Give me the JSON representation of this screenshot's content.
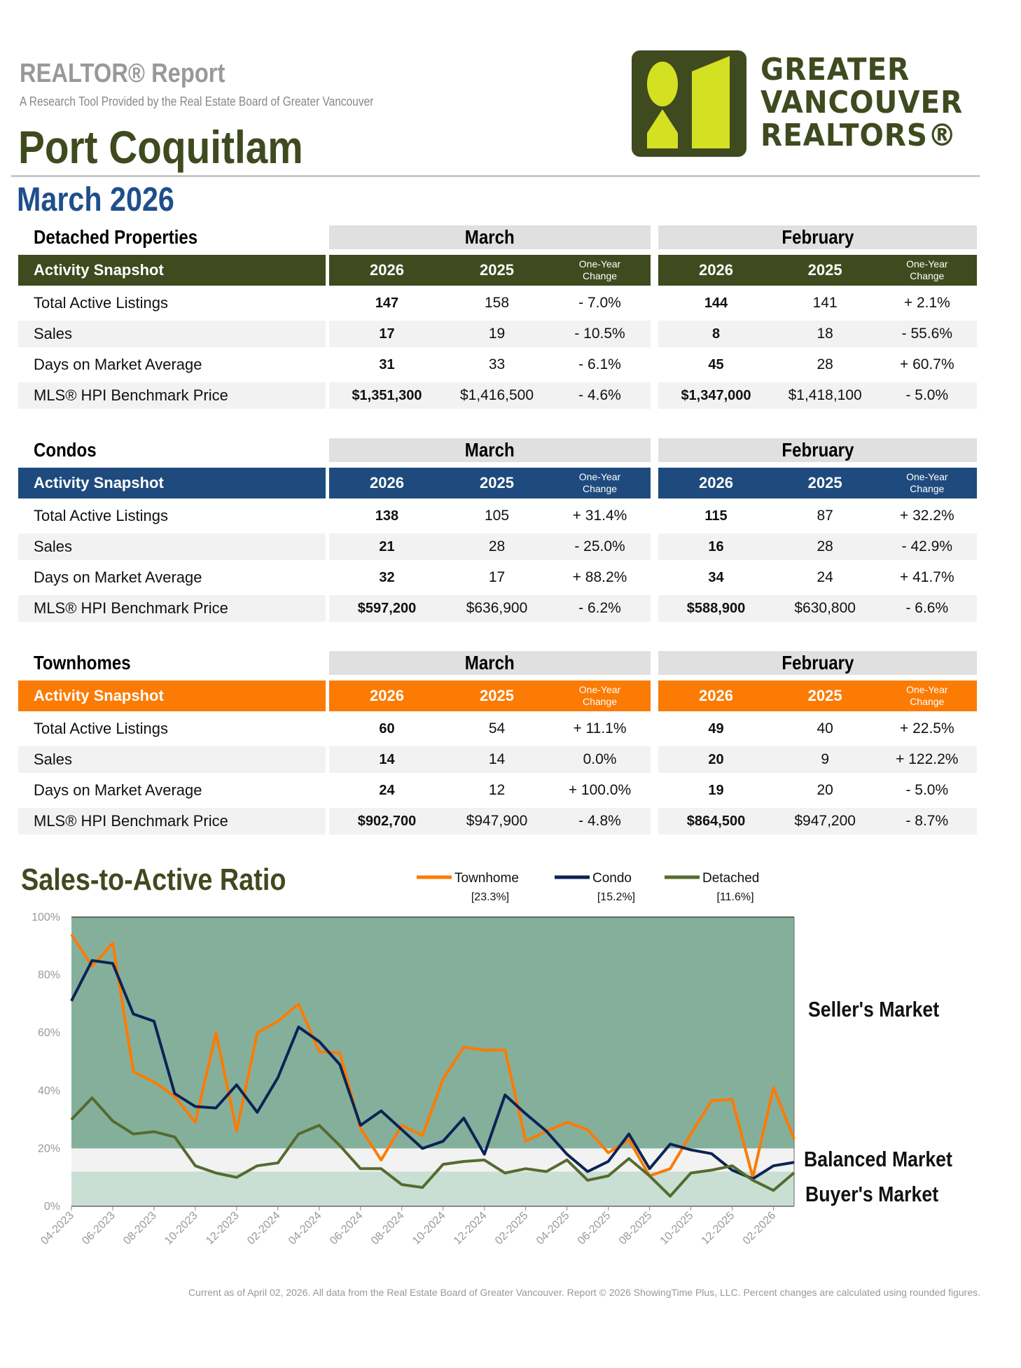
{
  "header": {
    "report_title": "REALTOR® Report",
    "subtitle": "A Research Tool Provided by the Real Estate Board of Greater Vancouver",
    "area": "Port Coquitlam",
    "period": "March 2026",
    "logo_text": [
      "GREATER",
      "VANCOUVER",
      "REALTORS®"
    ]
  },
  "colors": {
    "detached": "#3f4a1f",
    "condo": "#1f4a7d",
    "townhome": "#fb7b05",
    "logo_lime": "#d4e022"
  },
  "columns": {
    "month1": "March",
    "month2": "February",
    "y1": "2026",
    "y2": "2025",
    "change": [
      "One-Year",
      "Change"
    ],
    "snapshot": "Activity Snapshot"
  },
  "sections": [
    {
      "title": "Detached Properties",
      "rows": [
        {
          "label": "Total Active Listings",
          "m1_2026": "147",
          "m1_2025": "158",
          "m1_chg": "- 7.0%",
          "m2_2026": "144",
          "m2_2025": "141",
          "m2_chg": "+ 2.1%"
        },
        {
          "label": "Sales",
          "m1_2026": "17",
          "m1_2025": "19",
          "m1_chg": "- 10.5%",
          "m2_2026": "8",
          "m2_2025": "18",
          "m2_chg": "- 55.6%"
        },
        {
          "label": "Days on Market Average",
          "m1_2026": "31",
          "m1_2025": "33",
          "m1_chg": "- 6.1%",
          "m2_2026": "45",
          "m2_2025": "28",
          "m2_chg": "+ 60.7%"
        },
        {
          "label": "MLS® HPI Benchmark Price",
          "m1_2026": "$1,351,300",
          "m1_2025": "$1,416,500",
          "m1_chg": "- 4.6%",
          "m2_2026": "$1,347,000",
          "m2_2025": "$1,418,100",
          "m2_chg": "- 5.0%"
        }
      ]
    },
    {
      "title": "Condos",
      "rows": [
        {
          "label": "Total Active Listings",
          "m1_2026": "138",
          "m1_2025": "105",
          "m1_chg": "+ 31.4%",
          "m2_2026": "115",
          "m2_2025": "87",
          "m2_chg": "+ 32.2%"
        },
        {
          "label": "Sales",
          "m1_2026": "21",
          "m1_2025": "28",
          "m1_chg": "- 25.0%",
          "m2_2026": "16",
          "m2_2025": "28",
          "m2_chg": "- 42.9%"
        },
        {
          "label": "Days on Market Average",
          "m1_2026": "32",
          "m1_2025": "17",
          "m1_chg": "+ 88.2%",
          "m2_2026": "34",
          "m2_2025": "24",
          "m2_chg": "+ 41.7%"
        },
        {
          "label": "MLS® HPI Benchmark Price",
          "m1_2026": "$597,200",
          "m1_2025": "$636,900",
          "m1_chg": "- 6.2%",
          "m2_2026": "$588,900",
          "m2_2025": "$630,800",
          "m2_chg": "- 6.6%"
        }
      ]
    },
    {
      "title": "Townhomes",
      "rows": [
        {
          "label": "Total Active Listings",
          "m1_2026": "60",
          "m1_2025": "54",
          "m1_chg": "+ 11.1%",
          "m2_2026": "49",
          "m2_2025": "40",
          "m2_chg": "+ 22.5%"
        },
        {
          "label": "Sales",
          "m1_2026": "14",
          "m1_2025": "14",
          "m1_chg": "0.0%",
          "m2_2026": "20",
          "m2_2025": "9",
          "m2_chg": "+ 122.2%"
        },
        {
          "label": "Days on Market Average",
          "m1_2026": "24",
          "m1_2025": "12",
          "m1_chg": "+ 100.0%",
          "m2_2026": "19",
          "m2_2025": "20",
          "m2_chg": "- 5.0%"
        },
        {
          "label": "MLS® HPI Benchmark Price",
          "m1_2026": "$902,700",
          "m1_2025": "$947,900",
          "m1_chg": "- 4.8%",
          "m2_2026": "$864,500",
          "m2_2025": "$947,200",
          "m2_chg": "- 8.7%"
        }
      ]
    }
  ],
  "chart_data": {
    "type": "line",
    "title": "Sales-to-Active Ratio",
    "ylim": [
      0,
      100
    ],
    "yticks": [
      "0%",
      "20%",
      "40%",
      "60%",
      "80%",
      "100%"
    ],
    "x": [
      "04-2023",
      "05-2023",
      "06-2023",
      "07-2023",
      "08-2023",
      "09-2023",
      "10-2023",
      "11-2023",
      "12-2023",
      "01-2024",
      "02-2024",
      "03-2024",
      "04-2024",
      "05-2024",
      "06-2024",
      "07-2024",
      "08-2024",
      "09-2024",
      "10-2024",
      "11-2024",
      "12-2024",
      "01-2025",
      "02-2025",
      "03-2025",
      "04-2025",
      "05-2025",
      "06-2025",
      "07-2025",
      "08-2025",
      "09-2025",
      "10-2025",
      "11-2025",
      "12-2025",
      "01-2026",
      "02-2026",
      "03-2026"
    ],
    "xtick_labels": [
      "04-2023",
      "06-2023",
      "08-2023",
      "10-2023",
      "12-2023",
      "02-2024",
      "04-2024",
      "06-2024",
      "08-2024",
      "10-2024",
      "12-2024",
      "02-2025",
      "04-2025",
      "06-2025",
      "08-2025",
      "10-2025",
      "12-2025",
      "02-2026"
    ],
    "zones": [
      {
        "name": "Seller's Market",
        "from": 20,
        "to": 100,
        "color": "#84b09b"
      },
      {
        "name": "Balanced Market",
        "from": 12,
        "to": 20,
        "color": "#f2f2f2"
      },
      {
        "name": "Buyer's Market",
        "from": 0,
        "to": 12,
        "color": "#c9dfd3"
      }
    ],
    "legend": "top",
    "series": [
      {
        "name": "Townhome",
        "current": "[23.3%]",
        "color": "#fb7b05",
        "values": [
          94,
          83,
          91,
          46.5,
          43,
          38,
          29,
          60,
          26,
          60,
          64,
          70,
          53.5,
          53,
          27,
          16,
          28,
          24.5,
          44,
          55,
          54,
          54,
          22.5,
          26,
          29,
          26.5,
          18.5,
          23,
          10.5,
          13,
          25,
          36.5,
          37,
          10,
          41,
          23.3
        ]
      },
      {
        "name": "Condo",
        "current": "[15.2%]",
        "color": "#0d2355",
        "values": [
          71,
          85,
          84,
          66.5,
          64,
          39,
          34.5,
          34,
          42,
          32.5,
          44.5,
          62,
          57,
          49,
          28,
          33,
          26.5,
          20,
          22.5,
          30.5,
          18,
          38.5,
          32,
          26,
          18,
          12,
          15.5,
          25,
          13,
          21.5,
          19.5,
          18.2,
          12.5,
          9.5,
          14,
          15.2
        ]
      },
      {
        "name": "Detached",
        "current": "[11.6%]",
        "color": "#556b2f",
        "values": [
          30,
          37.5,
          29.5,
          25,
          25.8,
          24,
          14,
          11.5,
          10,
          14,
          15,
          25,
          28,
          21,
          13,
          13,
          7.5,
          6.5,
          14.5,
          15.5,
          16,
          11.5,
          13,
          12,
          16,
          9,
          10.5,
          16.5,
          10.5,
          3.5,
          11.5,
          12.5,
          14,
          9,
          5.5,
          11.6
        ]
      }
    ]
  },
  "footer": "Current as of April 02, 2026. All data from the Real Estate Board of Greater Vancouver.  Report © 2026 ShowingTime Plus, LLC. Percent changes are calculated using rounded figures."
}
